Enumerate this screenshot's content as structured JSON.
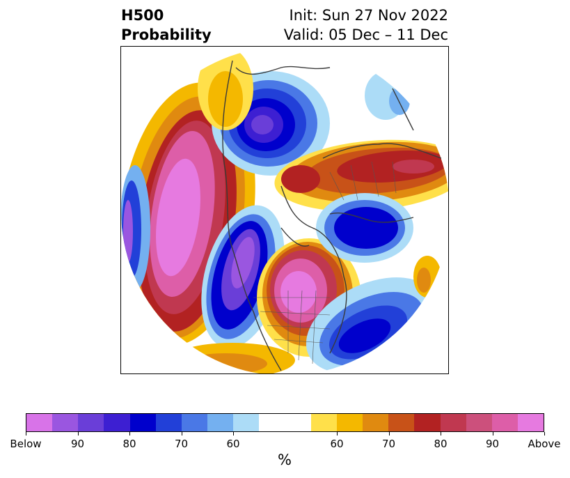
{
  "title": {
    "left_line1": "H500",
    "left_line2": "Probability",
    "right_line1": "Init: Sun 27 Nov 2022",
    "right_line2": "Valid: 05 Dec – 11 Dec"
  },
  "colorbar": {
    "units": "%",
    "colors": [
      "#d873e8",
      "#9a56e0",
      "#6a3ed8",
      "#3d1fd2",
      "#0000cc",
      "#2240d8",
      "#4a78e6",
      "#74b0f0",
      "#acdcf7",
      "#ffffff",
      "#ffffff",
      "#ffe04a",
      "#f4b800",
      "#e08a10",
      "#c85218",
      "#b22222",
      "#c03850",
      "#cc507c",
      "#dd5ea8",
      "#e67ae0"
    ],
    "tick_labels": [
      "Below",
      "90",
      "80",
      "70",
      "60",
      "60",
      "70",
      "80",
      "90",
      "Above"
    ]
  },
  "map": {
    "description_colors": {
      "below_strong": "#e67ae0",
      "above_strong": "#b22222"
    }
  }
}
